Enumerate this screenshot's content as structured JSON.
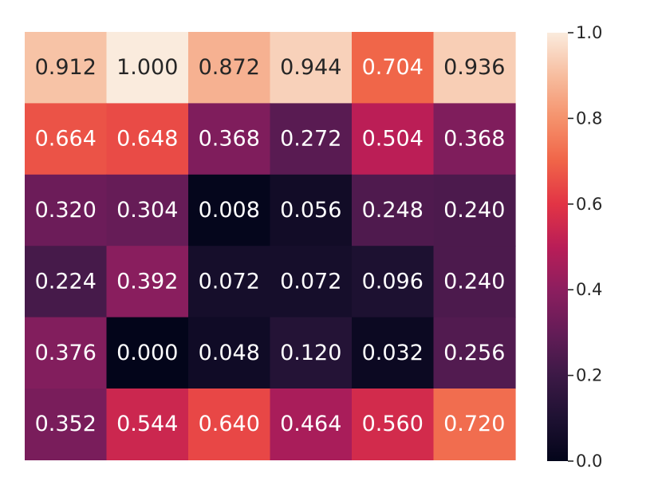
{
  "chart_data": {
    "type": "heatmap",
    "title": "",
    "xlabel": "",
    "ylabel": "",
    "rows": 6,
    "cols": 6,
    "values": [
      [
        0.912,
        1.0,
        0.872,
        0.944,
        0.704,
        0.936
      ],
      [
        0.664,
        0.648,
        0.368,
        0.272,
        0.504,
        0.368
      ],
      [
        0.32,
        0.304,
        0.008,
        0.056,
        0.248,
        0.24
      ],
      [
        0.224,
        0.392,
        0.072,
        0.072,
        0.096,
        0.24
      ],
      [
        0.376,
        0.0,
        0.048,
        0.12,
        0.032,
        0.256
      ],
      [
        0.352,
        0.544,
        0.64,
        0.464,
        0.56,
        0.72
      ]
    ],
    "annotation_format": "%.3f",
    "colormap": "rocket",
    "colorbar": {
      "range": [
        0.0,
        1.0
      ],
      "ticks": [
        0.0,
        0.2,
        0.4,
        0.6,
        0.8,
        1.0
      ],
      "tick_labels": [
        "0.0",
        "0.2",
        "0.4",
        "0.6",
        "0.8",
        "1.0"
      ]
    },
    "x_tick_labels": [],
    "y_tick_labels": [],
    "grid": false
  },
  "colors": {
    "background": "#ffffff",
    "text_dark": "#262626",
    "text_light": "#ffffff"
  }
}
